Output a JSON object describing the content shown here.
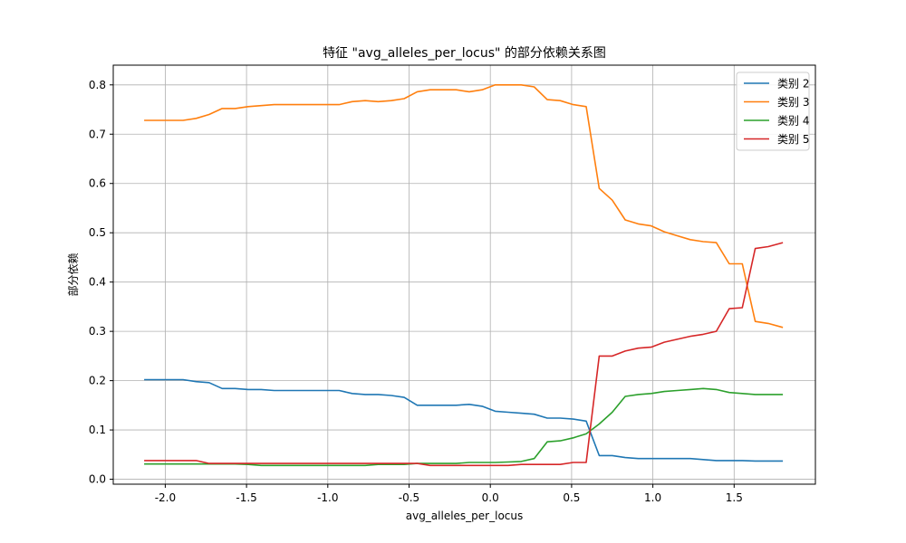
{
  "chart_data": {
    "type": "line",
    "title": "特征 \"avg_alleles_per_locus\" 的部分依赖关系图",
    "xlabel": "avg_alleles_per_locus",
    "ylabel": "部分依赖",
    "xlim": [
      -2.32,
      2.0
    ],
    "ylim": [
      -0.01,
      0.84
    ],
    "xticks": [
      -2.0,
      -1.5,
      -1.0,
      -0.5,
      0.0,
      0.5,
      1.0,
      1.5
    ],
    "xtick_labels": [
      "-2.0",
      "-1.5",
      "-1.0",
      "-0.5",
      "0.0",
      "0.5",
      "1.0",
      "1.5"
    ],
    "yticks": [
      0.0,
      0.1,
      0.2,
      0.3,
      0.4,
      0.5,
      0.6,
      0.7,
      0.8
    ],
    "ytick_labels": [
      "0.0",
      "0.1",
      "0.2",
      "0.3",
      "0.4",
      "0.5",
      "0.6",
      "0.7",
      "0.8"
    ],
    "grid": true,
    "legend_position": "top-right",
    "x": [
      -2.13,
      -2.05,
      -1.97,
      -1.89,
      -1.81,
      -1.73,
      -1.65,
      -1.57,
      -1.49,
      -1.41,
      -1.33,
      -1.25,
      -1.17,
      -1.09,
      -1.01,
      -0.93,
      -0.85,
      -0.77,
      -0.69,
      -0.61,
      -0.53,
      -0.45,
      -0.37,
      -0.29,
      -0.21,
      -0.13,
      -0.05,
      0.03,
      0.11,
      0.19,
      0.27,
      0.35,
      0.43,
      0.51,
      0.59,
      0.67,
      0.75,
      0.83,
      0.91,
      0.99,
      1.07,
      1.15,
      1.23,
      1.31,
      1.39,
      1.47,
      1.55,
      1.63,
      1.71,
      1.8
    ],
    "series": [
      {
        "name": "类别 2",
        "color": "#1f77b4",
        "values": [
          0.202,
          0.202,
          0.202,
          0.202,
          0.198,
          0.196,
          0.184,
          0.184,
          0.182,
          0.182,
          0.18,
          0.18,
          0.18,
          0.18,
          0.18,
          0.18,
          0.174,
          0.172,
          0.172,
          0.17,
          0.166,
          0.15,
          0.15,
          0.15,
          0.15,
          0.152,
          0.148,
          0.138,
          0.136,
          0.134,
          0.132,
          0.124,
          0.124,
          0.122,
          0.118,
          0.048,
          0.048,
          0.044,
          0.042,
          0.042,
          0.042,
          0.042,
          0.042,
          0.04,
          0.038,
          0.038,
          0.038,
          0.037,
          0.037,
          0.037
        ]
      },
      {
        "name": "类别 3",
        "color": "#ff7f0e",
        "values": [
          0.728,
          0.728,
          0.728,
          0.728,
          0.732,
          0.74,
          0.752,
          0.752,
          0.756,
          0.758,
          0.76,
          0.76,
          0.76,
          0.76,
          0.76,
          0.76,
          0.766,
          0.768,
          0.766,
          0.768,
          0.772,
          0.786,
          0.79,
          0.79,
          0.79,
          0.786,
          0.79,
          0.8,
          0.8,
          0.8,
          0.796,
          0.77,
          0.768,
          0.76,
          0.756,
          0.59,
          0.566,
          0.526,
          0.518,
          0.514,
          0.502,
          0.494,
          0.486,
          0.482,
          0.48,
          0.437,
          0.437,
          0.32,
          0.316,
          0.308
        ]
      },
      {
        "name": "类别 4",
        "color": "#2ca02c",
        "values": [
          0.031,
          0.031,
          0.031,
          0.031,
          0.031,
          0.031,
          0.031,
          0.031,
          0.03,
          0.028,
          0.028,
          0.028,
          0.028,
          0.028,
          0.028,
          0.028,
          0.028,
          0.028,
          0.03,
          0.03,
          0.03,
          0.032,
          0.032,
          0.032,
          0.032,
          0.034,
          0.034,
          0.034,
          0.035,
          0.036,
          0.042,
          0.076,
          0.078,
          0.084,
          0.092,
          0.112,
          0.136,
          0.168,
          0.172,
          0.174,
          0.178,
          0.18,
          0.182,
          0.184,
          0.182,
          0.176,
          0.174,
          0.172,
          0.172,
          0.172
        ]
      },
      {
        "name": "类别 5",
        "color": "#d62728",
        "values": [
          0.038,
          0.038,
          0.038,
          0.038,
          0.038,
          0.032,
          0.032,
          0.032,
          0.032,
          0.032,
          0.032,
          0.032,
          0.032,
          0.032,
          0.032,
          0.032,
          0.032,
          0.032,
          0.032,
          0.032,
          0.032,
          0.032,
          0.028,
          0.028,
          0.028,
          0.028,
          0.028,
          0.028,
          0.028,
          0.03,
          0.03,
          0.03,
          0.03,
          0.034,
          0.034,
          0.25,
          0.25,
          0.26,
          0.266,
          0.268,
          0.278,
          0.284,
          0.29,
          0.294,
          0.3,
          0.346,
          0.348,
          0.468,
          0.472,
          0.48
        ]
      }
    ]
  }
}
